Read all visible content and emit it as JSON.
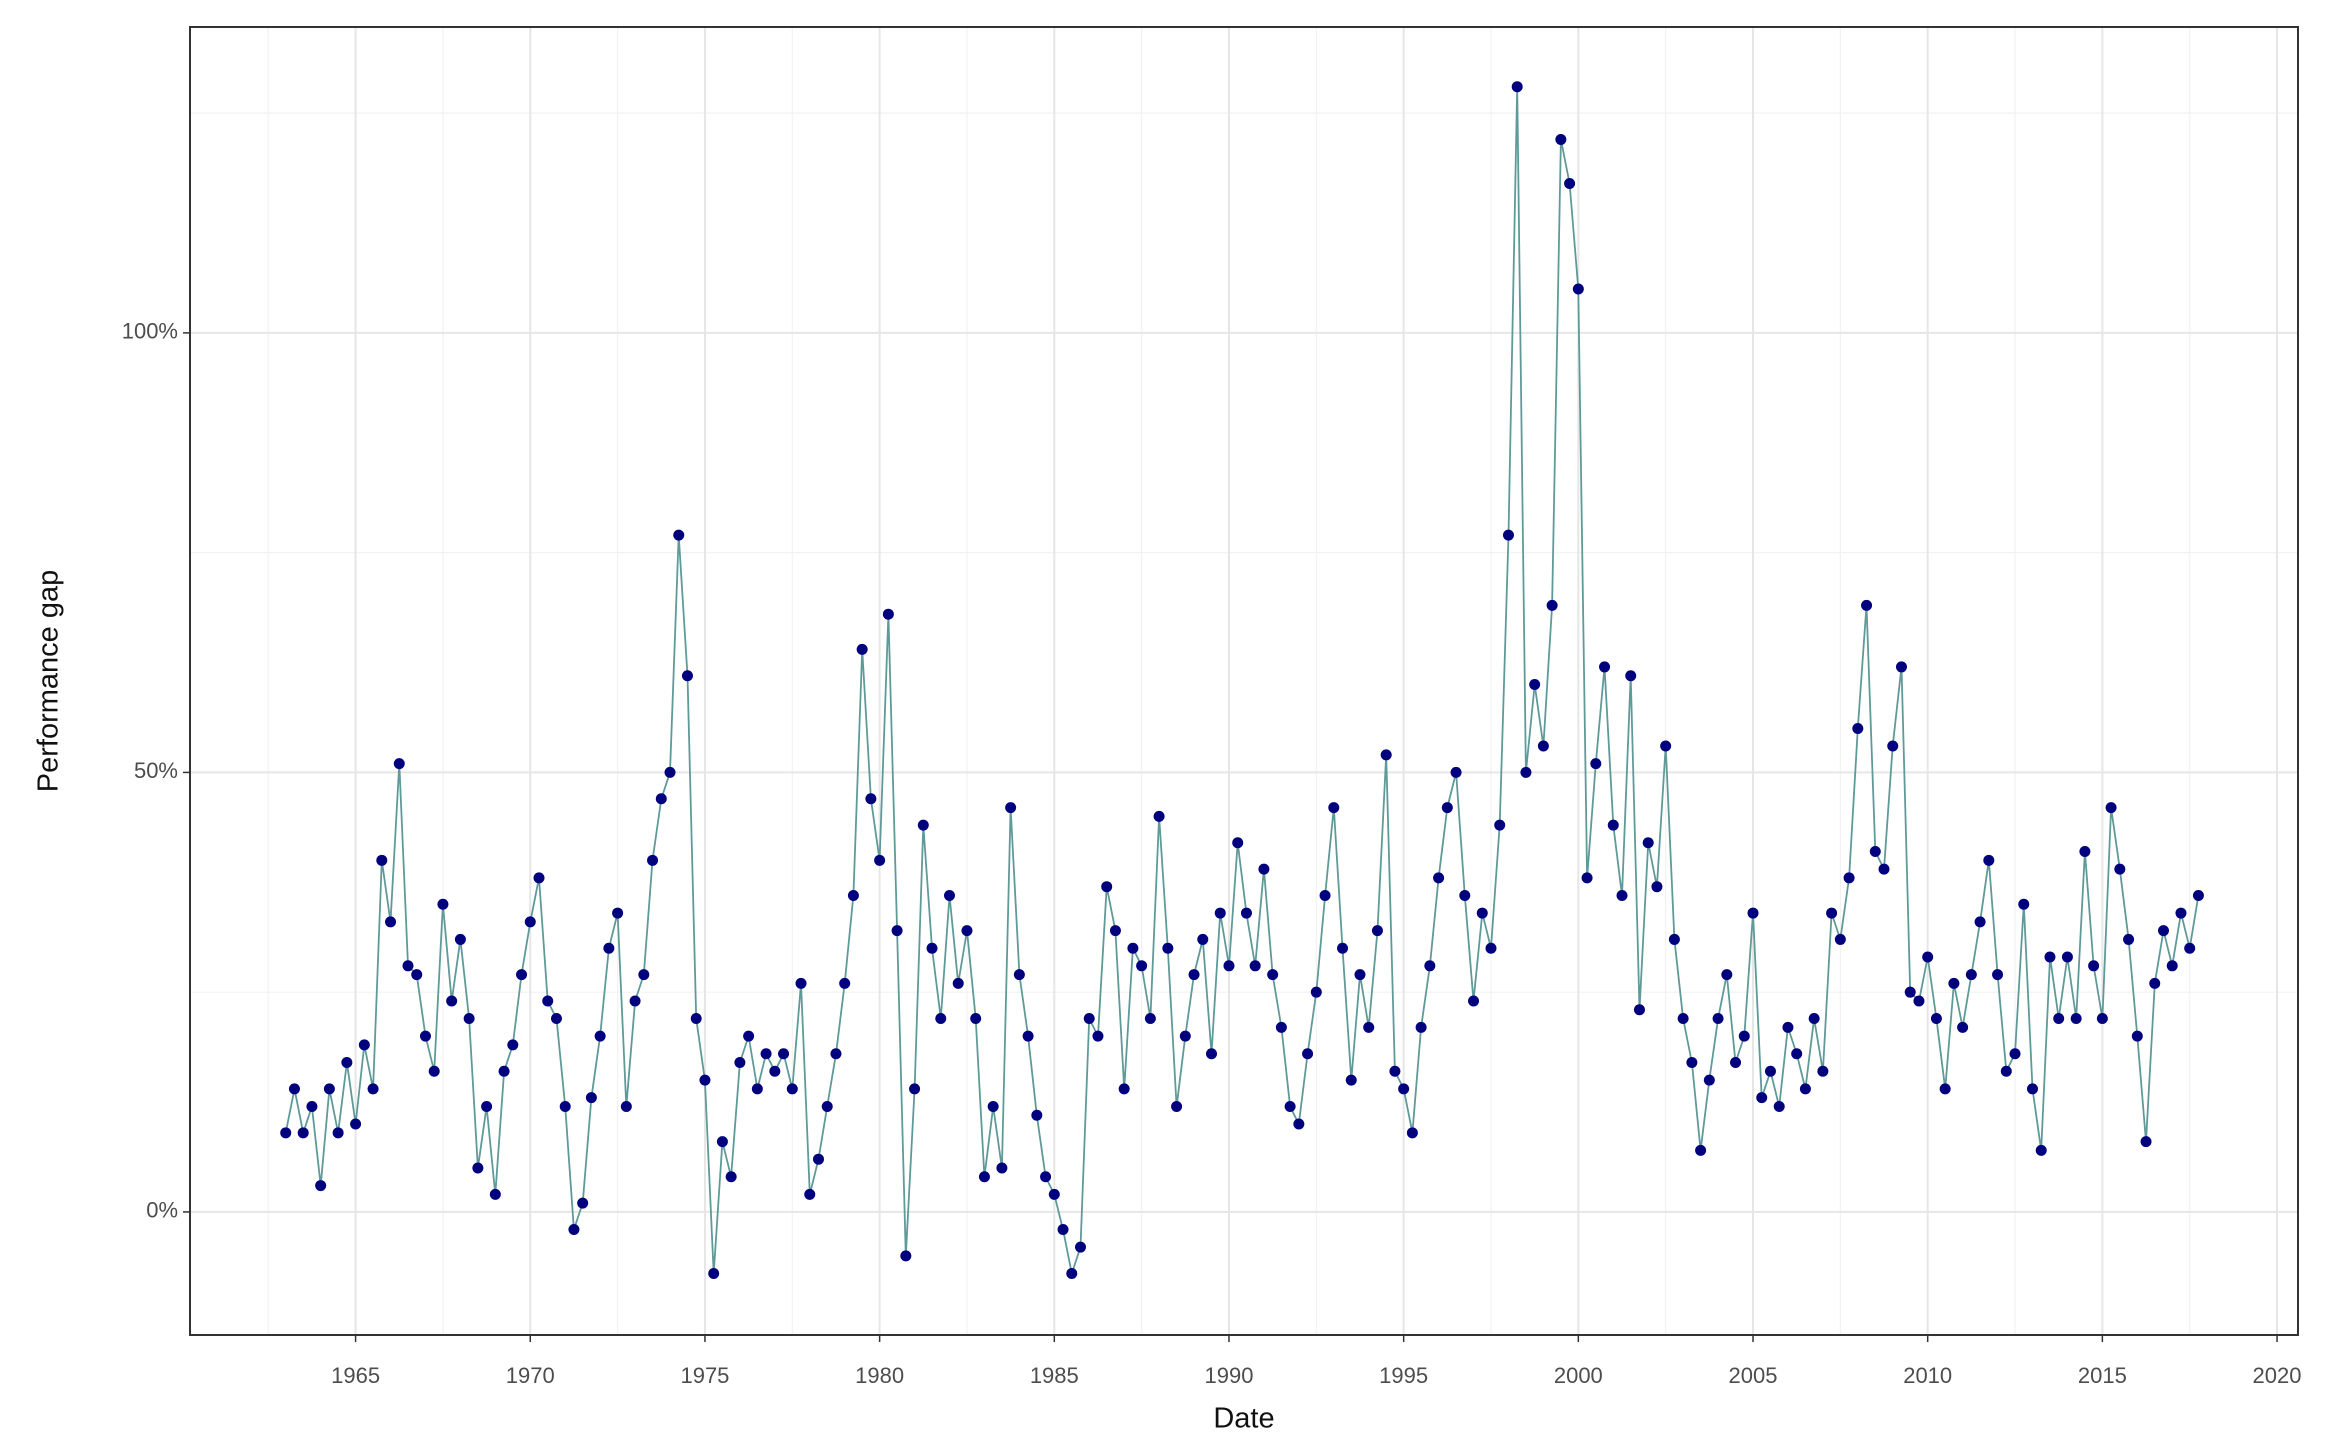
{
  "chart_data": {
    "type": "line",
    "xlabel": "Date",
    "ylabel": "Performance gap",
    "x": [
      1963,
      1963.25,
      1963.5,
      1963.75,
      1964,
      1964.25,
      1964.5,
      1964.75,
      1965,
      1965.25,
      1965.5,
      1965.75,
      1966,
      1966.25,
      1966.5,
      1966.75,
      1967,
      1967.25,
      1967.5,
      1967.75,
      1968,
      1968.25,
      1968.5,
      1968.75,
      1969,
      1969.25,
      1969.5,
      1969.75,
      1970,
      1970.25,
      1970.5,
      1970.75,
      1971,
      1971.25,
      1971.5,
      1971.75,
      1972,
      1972.25,
      1972.5,
      1972.75,
      1973,
      1973.25,
      1973.5,
      1973.75,
      1974,
      1974.25,
      1974.5,
      1974.75,
      1975,
      1975.25,
      1975.5,
      1975.75,
      1976,
      1976.25,
      1976.5,
      1976.75,
      1977,
      1977.25,
      1977.5,
      1977.75,
      1978,
      1978.25,
      1978.5,
      1978.75,
      1979,
      1979.25,
      1979.5,
      1979.75,
      1980,
      1980.25,
      1980.5,
      1980.75,
      1981,
      1981.25,
      1981.5,
      1981.75,
      1982,
      1982.25,
      1982.5,
      1982.75,
      1983,
      1983.25,
      1983.5,
      1983.75,
      1984,
      1984.25,
      1984.5,
      1984.75,
      1985,
      1985.25,
      1985.5,
      1985.75,
      1986,
      1986.25,
      1986.5,
      1986.75,
      1987,
      1987.25,
      1987.5,
      1987.75,
      1988,
      1988.25,
      1988.5,
      1988.75,
      1989,
      1989.25,
      1989.5,
      1989.75,
      1990,
      1990.25,
      1990.5,
      1990.75,
      1991,
      1991.25,
      1991.5,
      1991.75,
      1992,
      1992.25,
      1992.5,
      1992.75,
      1993,
      1993.25,
      1993.5,
      1993.75,
      1994,
      1994.25,
      1994.5,
      1994.75,
      1995,
      1995.25,
      1995.5,
      1995.75,
      1996,
      1996.25,
      1996.5,
      1996.75,
      1997,
      1997.25,
      1997.5,
      1997.75,
      1998,
      1998.25,
      1998.5,
      1998.75,
      1999,
      1999.25,
      1999.5,
      1999.75,
      2000,
      2000.25,
      2000.5,
      2000.75,
      2001,
      2001.25,
      2001.5,
      2001.75,
      2002,
      2002.25,
      2002.5,
      2002.75,
      2003,
      2003.25,
      2003.5,
      2003.75,
      2004,
      2004.25,
      2004.5,
      2004.75,
      2005,
      2005.25,
      2005.5,
      2005.75,
      2006,
      2006.25,
      2006.5,
      2006.75,
      2007,
      2007.25,
      2007.5,
      2007.75,
      2008,
      2008.25,
      2008.5,
      2008.75,
      2009,
      2009.25,
      2009.5,
      2009.75,
      2010,
      2010.25,
      2010.5,
      2010.75,
      2011,
      2011.25,
      2011.5,
      2011.75,
      2012,
      2012.25,
      2012.5,
      2012.75,
      2013,
      2013.25,
      2013.5,
      2013.75,
      2014,
      2014.25,
      2014.5,
      2014.75,
      2015,
      2015.25,
      2015.5,
      2015.75,
      2016,
      2016.25,
      2016.5,
      2016.75,
      2017,
      2017.25,
      2017.5,
      2017.75
    ],
    "values": [
      9,
      14,
      9,
      12,
      3,
      14,
      9,
      17,
      10,
      19,
      14,
      40,
      33,
      51,
      28,
      27,
      20,
      16,
      35,
      24,
      31,
      22,
      5,
      12,
      2,
      16,
      19,
      27,
      33,
      38,
      24,
      22,
      12,
      -2,
      1,
      13,
      20,
      30,
      34,
      12,
      24,
      27,
      40,
      47,
      50,
      77,
      61,
      22,
      15,
      -7,
      8,
      4,
      17,
      20,
      14,
      18,
      16,
      18,
      14,
      26,
      2,
      6,
      12,
      18,
      26,
      36,
      64,
      47,
      40,
      68,
      32,
      -5,
      14,
      44,
      30,
      22,
      36,
      26,
      32,
      22,
      4,
      12,
      5,
      46,
      27,
      20,
      11,
      4,
      2,
      -2,
      -7,
      -4,
      22,
      20,
      37,
      32,
      14,
      30,
      28,
      22,
      45,
      30,
      12,
      20,
      27,
      31,
      18,
      34,
      28,
      42,
      34,
      28,
      39,
      27,
      21,
      12,
      10,
      18,
      25,
      36,
      46,
      30,
      15,
      27,
      21,
      32,
      52,
      16,
      14,
      9,
      21,
      28,
      38,
      46,
      50,
      36,
      24,
      34,
      30,
      44,
      77,
      128,
      50,
      60,
      53,
      69,
      122,
      117,
      105,
      38,
      51,
      62,
      44,
      36,
      61,
      23,
      42,
      37,
      53,
      31,
      22,
      17,
      7,
      15,
      22,
      27,
      17,
      20,
      34,
      13,
      16,
      12,
      21,
      18,
      14,
      22,
      16,
      34,
      31,
      38,
      55,
      69,
      41,
      39,
      53,
      62,
      25,
      24,
      29,
      22,
      14,
      26,
      21,
      27,
      33,
      40,
      27,
      16,
      18,
      35,
      14,
      7,
      29,
      22,
      29,
      22,
      41,
      28,
      22,
      46,
      39,
      31,
      20,
      8,
      26,
      32,
      28,
      34,
      30,
      36
    ],
    "color": "#00007f",
    "line_color": "#5f9a99",
    "xlim": [
      1960.26,
      2020.6
    ],
    "xticks": [
      1965,
      1970,
      1975,
      1980,
      1985,
      1990,
      1995,
      2000,
      2005,
      2010,
      2015,
      2020
    ],
    "xminor": [
      1962.5,
      1967.5,
      1972.5,
      1977.5,
      1982.5,
      1987.5,
      1992.5,
      1997.5,
      2002.5,
      2007.5,
      2012.5,
      2017.5
    ],
    "ylim": [
      -14,
      134.8
    ],
    "yticks": [
      {
        "value": 0,
        "label": "0%"
      },
      {
        "value": 50,
        "label": "50%"
      },
      {
        "value": 100,
        "label": "100%"
      }
    ],
    "yminor": [
      25,
      75,
      125
    ],
    "grid": true
  }
}
